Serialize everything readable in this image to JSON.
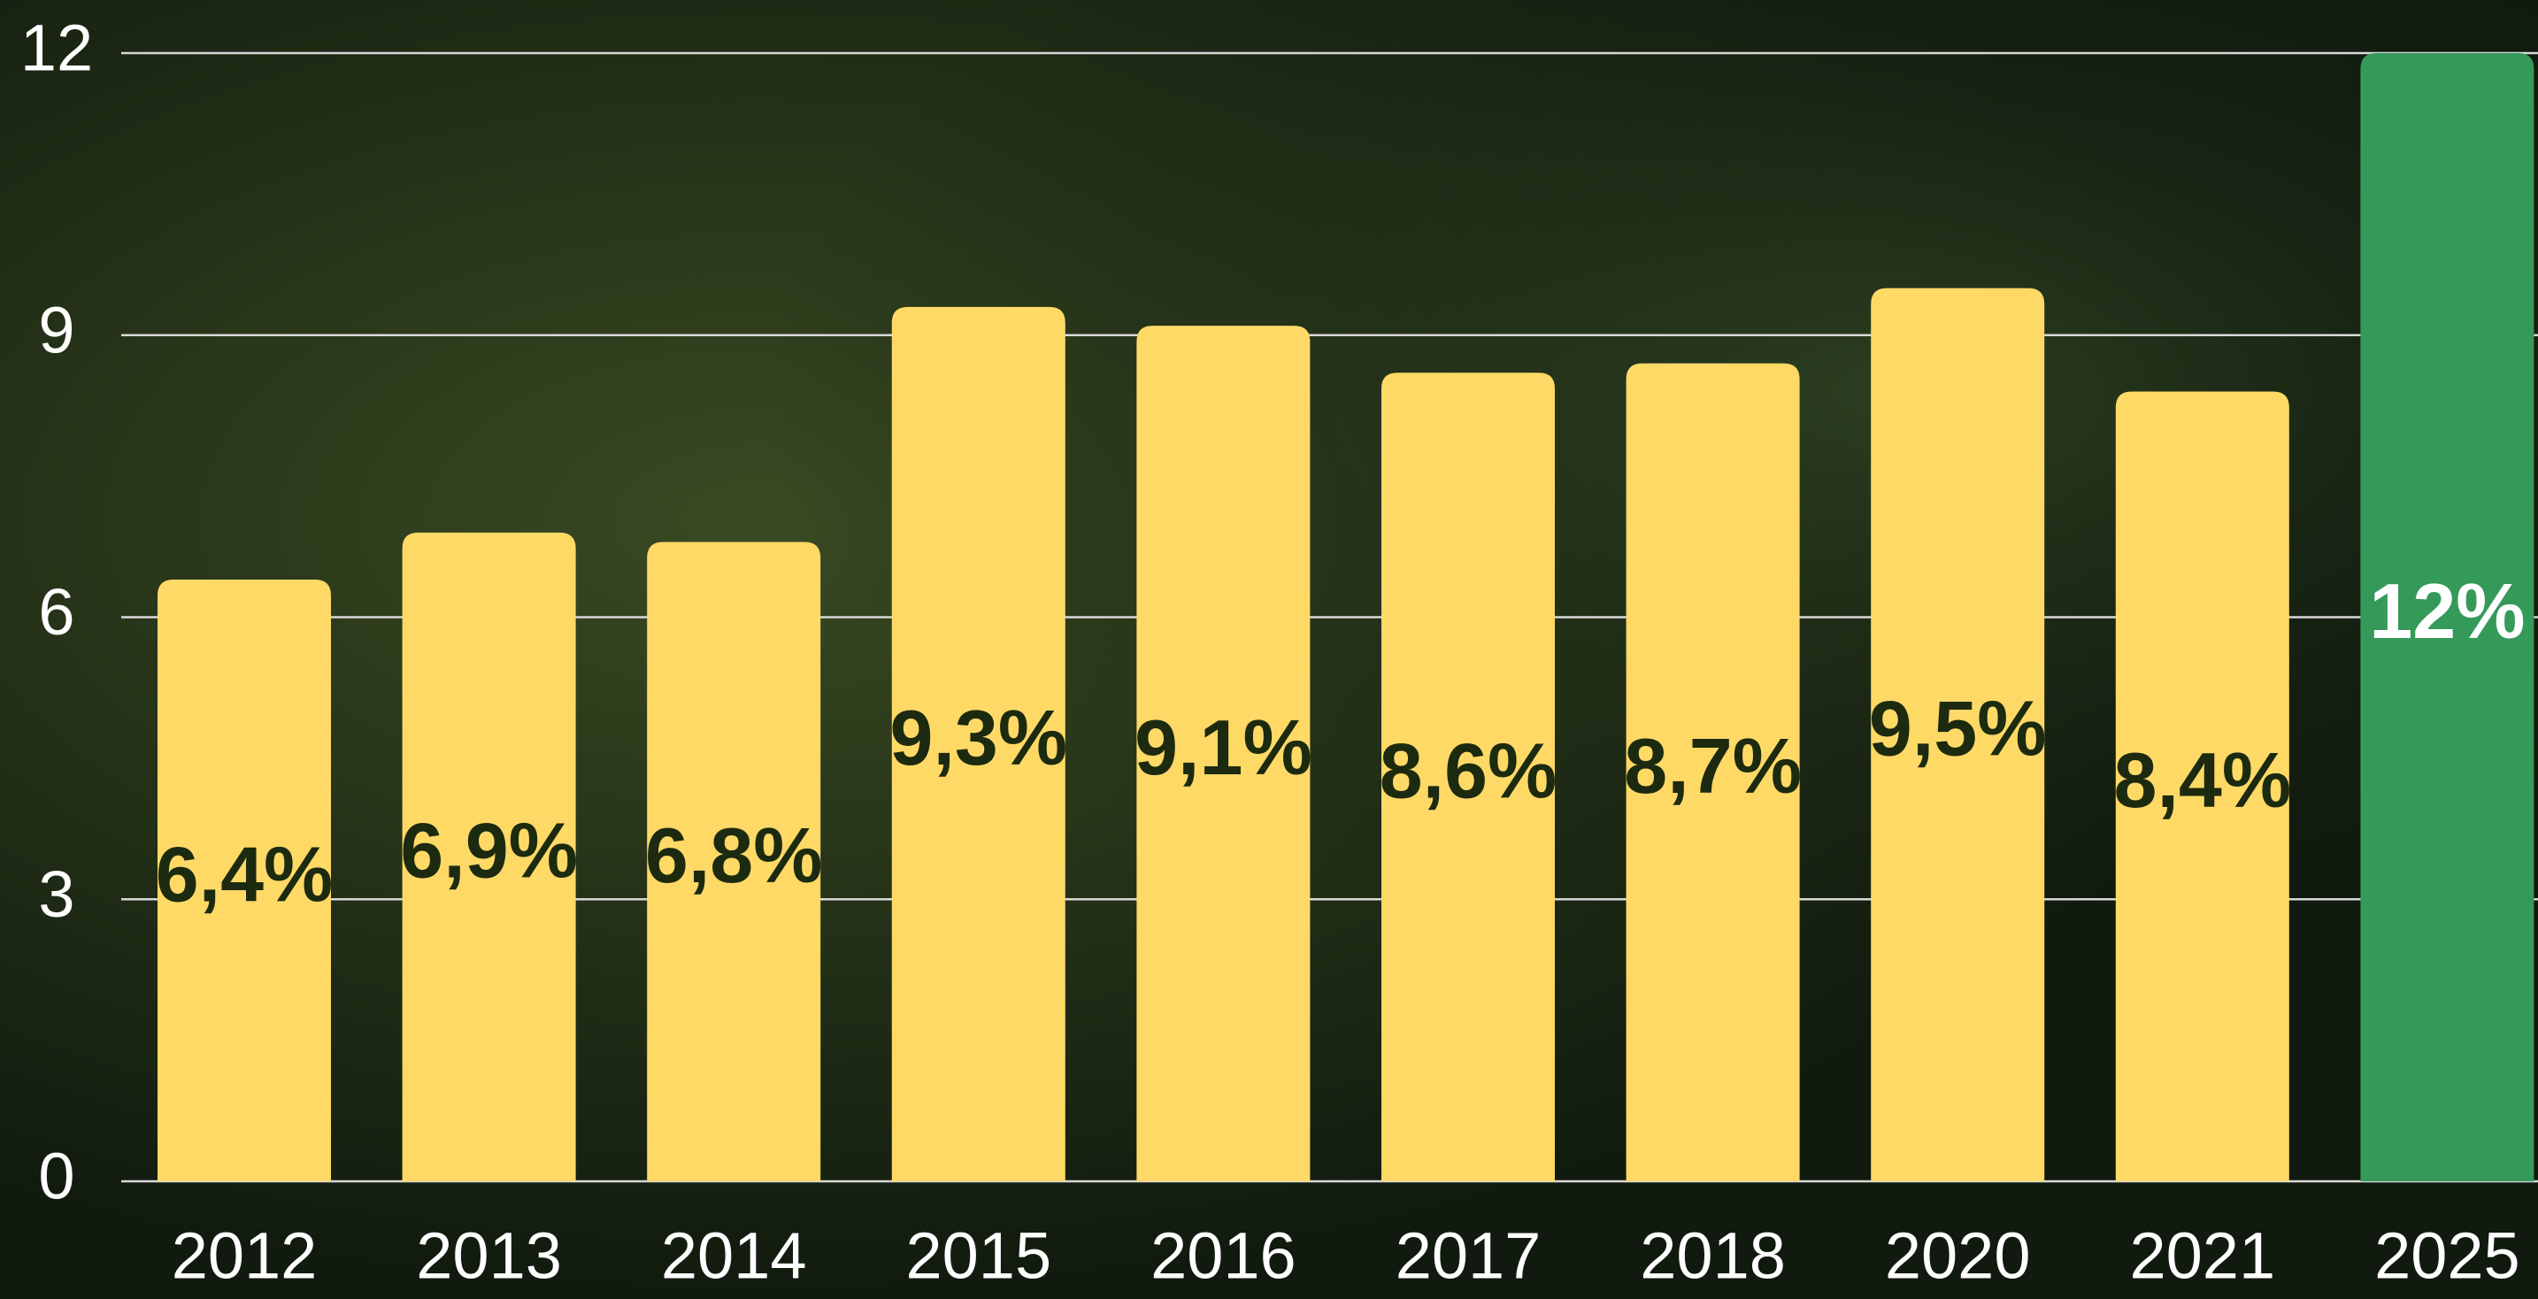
{
  "chart_data": {
    "type": "bar",
    "categories": [
      "2012",
      "2013",
      "2014",
      "2015",
      "2016",
      "2017",
      "2018",
      "2020",
      "2021",
      "2025"
    ],
    "values": [
      6.4,
      6.9,
      6.8,
      9.3,
      9.1,
      8.6,
      8.7,
      9.5,
      8.4,
      12
    ],
    "value_labels": [
      "6,4%",
      "6,9%",
      "6,8%",
      "9,3%",
      "9,1%",
      "8,6%",
      "8,7%",
      "9,5%",
      "8,4%",
      "12%"
    ],
    "colors": [
      "#ffd966",
      "#ffd966",
      "#ffd966",
      "#ffd966",
      "#ffd966",
      "#ffd966",
      "#ffd966",
      "#ffd966",
      "#ffd966",
      "#35995a"
    ],
    "ylim": [
      0,
      12
    ],
    "yticks": [
      0,
      3,
      6,
      9,
      12
    ],
    "grid": true
  }
}
